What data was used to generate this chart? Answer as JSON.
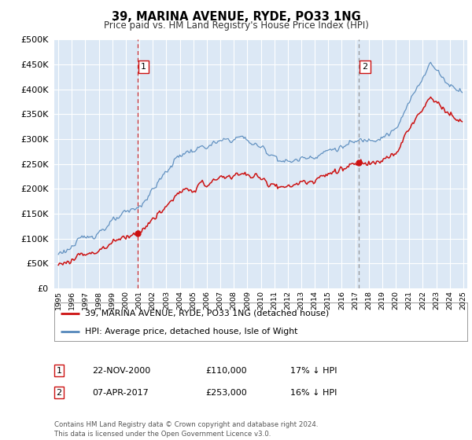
{
  "title": "39, MARINA AVENUE, RYDE, PO33 1NG",
  "subtitle": "Price paid vs. HM Land Registry's House Price Index (HPI)",
  "legend_line1": "39, MARINA AVENUE, RYDE, PO33 1NG (detached house)",
  "legend_line2": "HPI: Average price, detached house, Isle of Wight",
  "sale1_date": "22-NOV-2000",
  "sale1_price": 110000,
  "sale1_label": "17% ↓ HPI",
  "sale1_year": 2000.88,
  "sale2_date": "07-APR-2017",
  "sale2_price": 253000,
  "sale2_label": "16% ↓ HPI",
  "sale2_year": 2017.27,
  "ylim": [
    0,
    500000
  ],
  "yticks": [
    0,
    50000,
    100000,
    150000,
    200000,
    250000,
    300000,
    350000,
    400000,
    450000,
    500000
  ],
  "xmin": 1994.7,
  "xmax": 2025.3,
  "hpi_color": "#5588bb",
  "price_color": "#cc1111",
  "sale1_line_color": "#cc1111",
  "sale2_line_color": "#888888",
  "bg_color": "#dce8f5",
  "footnote": "Contains HM Land Registry data © Crown copyright and database right 2024.\nThis data is licensed under the Open Government Licence v3.0."
}
